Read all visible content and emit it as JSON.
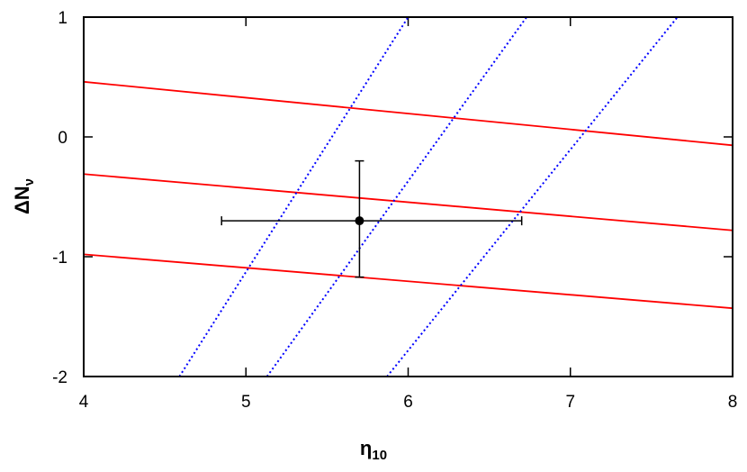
{
  "chart_data": {
    "type": "line",
    "xlabel": [
      "η",
      "10"
    ],
    "ylabel": [
      "ΔN",
      "ν"
    ],
    "xlim": [
      4,
      8
    ],
    "ylim": [
      -2,
      1
    ],
    "xticks": [
      4,
      5,
      6,
      7,
      8
    ],
    "yticks": [
      -2,
      -1,
      0,
      1
    ],
    "series": [
      {
        "color": "#ff0000",
        "style": "solid",
        "x": [
          4,
          8
        ],
        "y": [
          0.46,
          -0.07
        ]
      },
      {
        "color": "#ff0000",
        "style": "solid",
        "x": [
          4,
          8
        ],
        "y": [
          -0.31,
          -0.78
        ]
      },
      {
        "color": "#ff0000",
        "style": "solid",
        "x": [
          4,
          8
        ],
        "y": [
          -0.98,
          -1.43
        ]
      },
      {
        "color": "#0000ff",
        "style": "dotted",
        "x": [
          4.59,
          6.0
        ],
        "y": [
          -2,
          1
        ]
      },
      {
        "color": "#0000ff",
        "style": "dotted",
        "x": [
          5.13,
          6.73
        ],
        "y": [
          -2,
          1
        ]
      },
      {
        "color": "#0000ff",
        "style": "dotted",
        "x": [
          5.87,
          7.66
        ],
        "y": [
          -2,
          1
        ]
      }
    ],
    "point": {
      "color": "#000000",
      "x": 5.7,
      "y": -0.7,
      "xerr_minus": 0.85,
      "xerr_plus": 1.0,
      "yerr_minus": 0.47,
      "yerr_plus": 0.5
    }
  }
}
